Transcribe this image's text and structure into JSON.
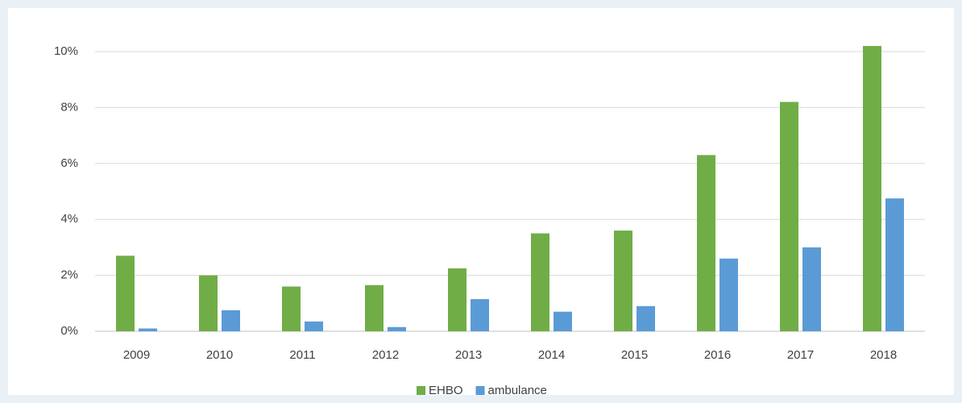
{
  "chart_data": {
    "type": "bar",
    "categories": [
      "2009",
      "2010",
      "2011",
      "2012",
      "2013",
      "2014",
      "2015",
      "2016",
      "2017",
      "2018"
    ],
    "series": [
      {
        "name": "EHBO",
        "color": "#70ad47",
        "values": [
          2.7,
          2.0,
          1.6,
          1.65,
          2.25,
          3.5,
          3.6,
          6.3,
          8.2,
          10.2
        ]
      },
      {
        "name": "ambulance",
        "color": "#5b9bd5",
        "values": [
          0.1,
          0.75,
          0.35,
          0.15,
          1.15,
          0.7,
          0.9,
          2.6,
          3.0,
          4.75
        ]
      }
    ],
    "ylim": [
      0,
      10
    ],
    "yticks": [
      {
        "value": 0,
        "label": "0%"
      },
      {
        "value": 2,
        "label": "2%"
      },
      {
        "value": 4,
        "label": "4%"
      },
      {
        "value": 6,
        "label": "6%"
      },
      {
        "value": 8,
        "label": "8%"
      },
      {
        "value": 10,
        "label": "10%"
      }
    ],
    "grid": true,
    "legend": "bottom"
  }
}
